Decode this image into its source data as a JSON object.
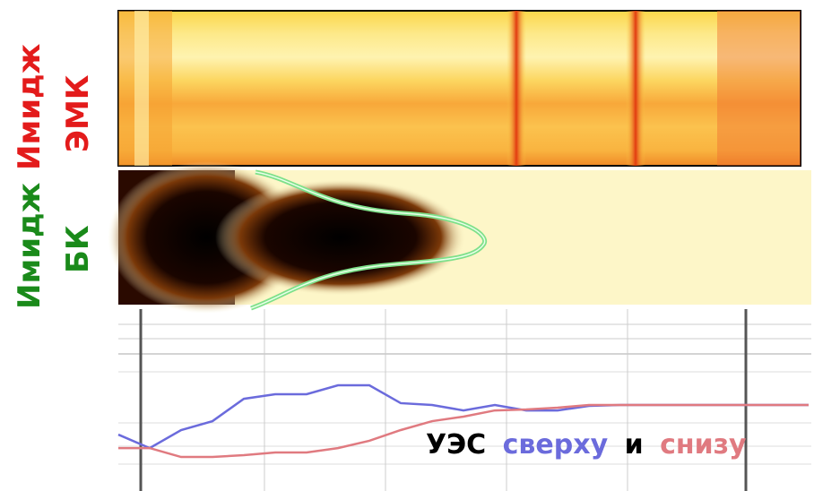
{
  "panels": [
    {
      "label": [
        "Имидж",
        "ЭМК"
      ]
    },
    {
      "label": [
        "Имидж",
        "БК"
      ]
    }
  ],
  "chart_data": {
    "type": "line",
    "annotation": "УЭС",
    "conjunction": "и",
    "categories": [
      null,
      null,
      null,
      null,
      null,
      null,
      null,
      null,
      null,
      null,
      null,
      null,
      null,
      null,
      null,
      null,
      null,
      null,
      null,
      null,
      null,
      null,
      null
    ],
    "ylim": [
      0,
      100
    ],
    "series": [
      {
        "name": "сверху",
        "color": "#6b6bdc",
        "values": [
          31,
          23.6,
          33.5,
          38.4,
          50.7,
          53.2,
          53.2,
          58.1,
          58.1,
          48.3,
          47.3,
          44.3,
          47.3,
          44.3,
          44.3,
          46.8,
          47.3,
          47.3,
          47.3,
          47.3,
          47.3,
          47.3,
          47.3
        ]
      },
      {
        "name": "снизу",
        "color": "#e07a80",
        "values": [
          23.6,
          23.6,
          18.7,
          18.7,
          19.7,
          21.2,
          21.2,
          23.6,
          27.6,
          33.5,
          38.4,
          40.9,
          44.3,
          44.8,
          45.8,
          47.3,
          47.3,
          47.3,
          47.3,
          47.3,
          47.3,
          47.3,
          47.3
        ]
      }
    ]
  }
}
